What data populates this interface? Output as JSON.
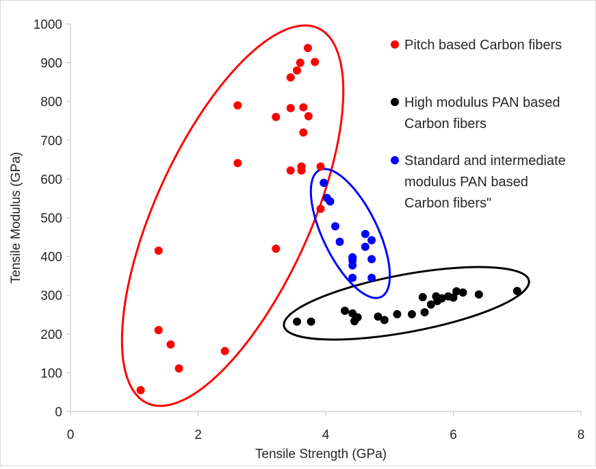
{
  "chart_data": {
    "type": "scatter",
    "title": "",
    "xlabel": "Tensile Strength (GPa)",
    "ylabel": "Tensile Modulus (GPa)",
    "xlim": [
      0,
      8
    ],
    "ylim": [
      0,
      1000
    ],
    "xticks": [
      0,
      2,
      4,
      6,
      8
    ],
    "yticks": [
      0,
      100,
      200,
      300,
      400,
      500,
      600,
      700,
      800,
      900,
      1000
    ],
    "grid": false,
    "legend_position": "right",
    "series": [
      {
        "name": "Pitch based Carbon fibers",
        "color": "#ff0000",
        "points": [
          [
            1.1,
            55
          ],
          [
            1.38,
            415
          ],
          [
            1.38,
            210
          ],
          [
            1.57,
            173
          ],
          [
            1.7,
            111
          ],
          [
            2.42,
            156
          ],
          [
            2.62,
            790
          ],
          [
            2.62,
            641
          ],
          [
            3.22,
            760
          ],
          [
            3.22,
            420
          ],
          [
            3.45,
            862
          ],
          [
            3.45,
            783
          ],
          [
            3.45,
            622
          ],
          [
            3.55,
            880
          ],
          [
            3.6,
            900
          ],
          [
            3.62,
            622
          ],
          [
            3.62,
            632
          ],
          [
            3.65,
            785
          ],
          [
            3.65,
            720
          ],
          [
            3.72,
            938
          ],
          [
            3.73,
            762
          ],
          [
            3.83,
            902
          ],
          [
            3.92,
            632
          ],
          [
            3.92,
            523
          ]
        ]
      },
      {
        "name": "High modulus PAN based Carbon fibers",
        "color": "#000000",
        "points": [
          [
            3.55,
            232
          ],
          [
            3.77,
            232
          ],
          [
            4.3,
            260
          ],
          [
            4.42,
            253
          ],
          [
            4.45,
            233
          ],
          [
            4.5,
            243
          ],
          [
            4.82,
            245
          ],
          [
            4.92,
            236
          ],
          [
            5.12,
            251
          ],
          [
            5.35,
            251
          ],
          [
            5.52,
            295
          ],
          [
            5.55,
            256
          ],
          [
            5.65,
            276
          ],
          [
            5.73,
            297
          ],
          [
            5.75,
            285
          ],
          [
            5.82,
            292
          ],
          [
            5.92,
            297
          ],
          [
            6.0,
            294
          ],
          [
            6.05,
            310
          ],
          [
            6.15,
            307
          ],
          [
            6.4,
            302
          ],
          [
            7.0,
            311
          ]
        ]
      },
      {
        "name": "Standard and intermediate modulus PAN based Carbon fibers\"",
        "color": "#0000ff",
        "points": [
          [
            3.97,
            590
          ],
          [
            4.02,
            551
          ],
          [
            4.07,
            542
          ],
          [
            4.15,
            478
          ],
          [
            4.22,
            438
          ],
          [
            4.42,
            398
          ],
          [
            4.42,
            390
          ],
          [
            4.42,
            377
          ],
          [
            4.42,
            345
          ],
          [
            4.62,
            458
          ],
          [
            4.62,
            425
          ],
          [
            4.72,
            442
          ],
          [
            4.72,
            393
          ],
          [
            4.72,
            345
          ]
        ]
      }
    ],
    "ellipses": [
      {
        "series": "Pitch based Carbon fibers",
        "color": "#ff0000"
      },
      {
        "series": "High modulus PAN based Carbon fibers",
        "color": "#000000"
      },
      {
        "series": "Standard and intermediate modulus PAN based Carbon fibers\"",
        "color": "#0000ff"
      }
    ],
    "legend": {
      "entries": [
        {
          "lines": [
            "Pitch based Carbon fibers"
          ],
          "color": "#ff0000"
        },
        {
          "lines": [
            "High modulus PAN based",
            "Carbon fibers"
          ],
          "color": "#000000"
        },
        {
          "lines": [
            "Standard and intermediate",
            "modulus PAN based",
            "Carbon fibers\""
          ],
          "color": "#0000ff"
        }
      ]
    }
  }
}
